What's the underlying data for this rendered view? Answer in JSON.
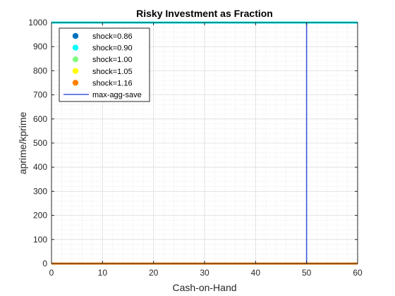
{
  "chart_data": {
    "type": "scatter",
    "title": "Risky Investment as Fraction",
    "xlabel": "Cash-on-Hand",
    "ylabel": "aprime/kprime",
    "xlim": [
      0,
      60
    ],
    "ylim": [
      0,
      1000
    ],
    "x_ticks": [
      0,
      10,
      20,
      30,
      40,
      50,
      60
    ],
    "y_ticks": [
      0,
      100,
      200,
      300,
      400,
      500,
      600,
      700,
      800,
      900,
      1000
    ],
    "grid": true,
    "minor_grid": true,
    "legend_position": "top-left",
    "series": [
      {
        "name": "shock=0.86",
        "color": "#0072bd",
        "marker": "dot",
        "x": [
          0,
          60
        ],
        "y": [
          0,
          0
        ]
      },
      {
        "name": "shock=0.90",
        "color": "#00ffff",
        "marker": "dot",
        "x": [
          0,
          60
        ],
        "y": [
          1000,
          1000
        ]
      },
      {
        "name": "shock=1.00",
        "color": "#80ff80",
        "marker": "dot",
        "x": [
          0,
          60
        ],
        "y": [
          0,
          0
        ]
      },
      {
        "name": "shock=1.05",
        "color": "#ffff00",
        "marker": "dot",
        "x": [
          0,
          60
        ],
        "y": [
          0,
          0
        ]
      },
      {
        "name": "shock=1.16",
        "color": "#ff8000",
        "marker": "dot",
        "x": [
          0,
          60
        ],
        "y": [
          0,
          0
        ]
      }
    ],
    "vline": {
      "name": "max-agg-save",
      "x": 50,
      "color": "#3b5bdb"
    }
  }
}
